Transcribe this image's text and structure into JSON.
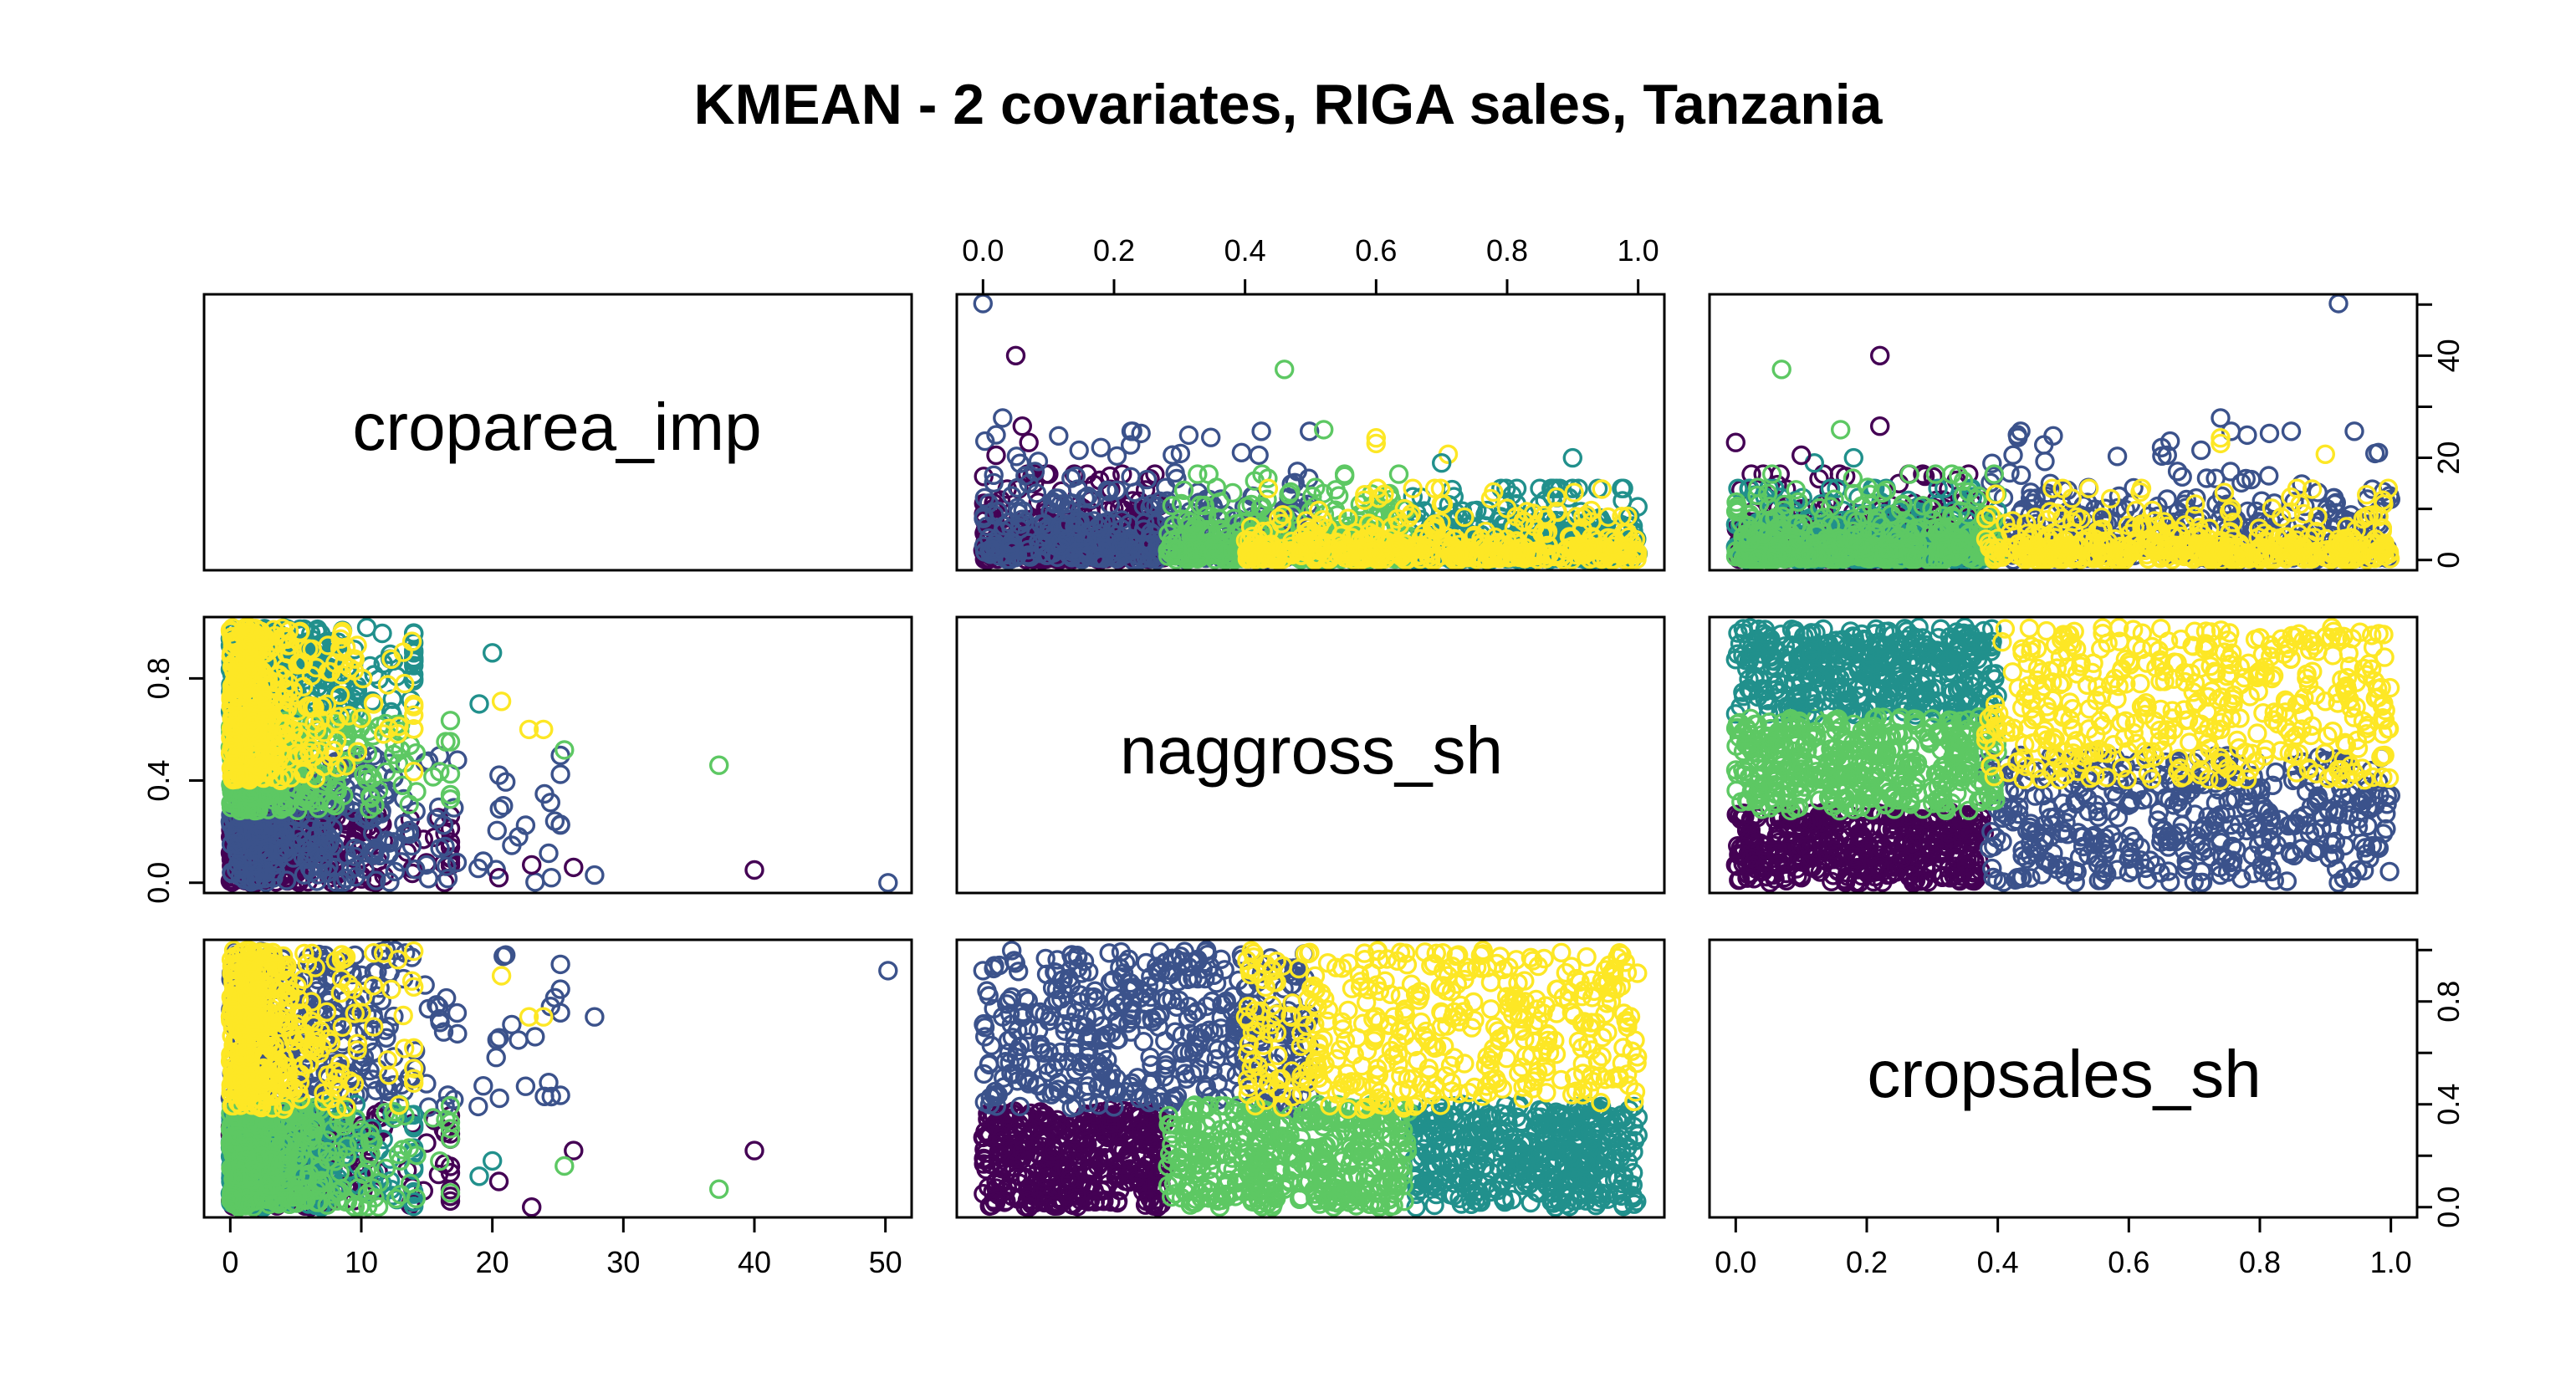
{
  "chart_data": {
    "type": "scatter",
    "subtype": "scatterplot-matrix",
    "title": "KMEAN - 2 covariates, RIGA sales, Tanzania",
    "variables": [
      {
        "name": "croparea_imp",
        "range": [
          0,
          50
        ],
        "ticks": [
          "0",
          "10",
          "20",
          "30",
          "40",
          "50"
        ]
      },
      {
        "name": "naggross_sh",
        "range": [
          0,
          1
        ],
        "ticks": [
          "0.0",
          "0.2",
          "0.4",
          "0.6",
          "0.8",
          "1.0"
        ],
        "left_ticks": [
          "0.0",
          "0.4",
          "0.8"
        ]
      },
      {
        "name": "cropsales_sh",
        "range": [
          0,
          1
        ],
        "ticks": [
          "0.0",
          "0.2",
          "0.4",
          "0.6",
          "0.8",
          "1.0"
        ],
        "right_ticks": [
          "0.0",
          "0.4",
          "0.8"
        ]
      }
    ],
    "croparea_right_ticks": [
      "0",
      "20",
      "40"
    ],
    "clusters": [
      {
        "id": 1,
        "color": "#440154",
        "naggross_sh": [
          0.0,
          0.28
        ],
        "cropsales_sh": [
          0.0,
          0.38
        ],
        "croparea_typical_max": 12
      },
      {
        "id": 2,
        "color": "#3B528B",
        "naggross_sh": [
          0.0,
          0.5
        ],
        "cropsales_sh": [
          0.38,
          1.0
        ],
        "croparea_typical_max": 18
      },
      {
        "id": 3,
        "color": "#21908C",
        "naggross_sh": [
          0.65,
          1.0
        ],
        "cropsales_sh": [
          0.0,
          0.4
        ],
        "croparea_typical_max": 10
      },
      {
        "id": 4,
        "color": "#5DC863",
        "naggross_sh": [
          0.28,
          0.65
        ],
        "cropsales_sh": [
          0.0,
          0.4
        ],
        "croparea_typical_max": 12
      },
      {
        "id": 5,
        "color": "#FDE725",
        "naggross_sh": [
          0.4,
          1.0
        ],
        "cropsales_sh": [
          0.38,
          1.0
        ],
        "croparea_typical_max": 10
      }
    ],
    "outliers": [
      {
        "cluster": 2,
        "croparea_imp": 50.2,
        "naggross_sh": 0.0,
        "cropsales_sh": 0.92
      },
      {
        "cluster": 1,
        "croparea_imp": 40.0,
        "naggross_sh": 0.05,
        "cropsales_sh": 0.22
      },
      {
        "cluster": 4,
        "croparea_imp": 37.3,
        "naggross_sh": 0.46,
        "cropsales_sh": 0.07
      },
      {
        "cluster": 2,
        "croparea_imp": 27.8,
        "naggross_sh": 0.03,
        "cropsales_sh": 0.74
      },
      {
        "cluster": 1,
        "croparea_imp": 26.2,
        "naggross_sh": 0.06,
        "cropsales_sh": 0.22
      },
      {
        "cluster": 4,
        "croparea_imp": 25.5,
        "naggross_sh": 0.52,
        "cropsales_sh": 0.16
      },
      {
        "cluster": 2,
        "croparea_imp": 24.5,
        "naggross_sh": 0.02,
        "cropsales_sh": 0.43
      },
      {
        "cluster": 5,
        "croparea_imp": 23.9,
        "naggross_sh": 0.6,
        "cropsales_sh": 0.74
      },
      {
        "cluster": 5,
        "croparea_imp": 22.8,
        "naggross_sh": 0.6,
        "cropsales_sh": 0.74
      },
      {
        "cluster": 3,
        "croparea_imp": 20.0,
        "naggross_sh": 0.9,
        "cropsales_sh": 0.18
      },
      {
        "cluster": 5,
        "croparea_imp": 20.7,
        "naggross_sh": 0.71,
        "cropsales_sh": 0.9
      },
      {
        "cluster": 2,
        "croparea_imp": 22.0,
        "naggross_sh": 0.18,
        "cropsales_sh": 0.65
      },
      {
        "cluster": 1,
        "croparea_imp": 23.0,
        "naggross_sh": 0.07,
        "cropsales_sh": 0.0
      },
      {
        "cluster": 3,
        "croparea_imp": 19.0,
        "naggross_sh": 0.7,
        "cropsales_sh": 0.12
      },
      {
        "cluster": 1,
        "croparea_imp": 20.5,
        "naggross_sh": 0.02,
        "cropsales_sh": 0.1
      }
    ]
  }
}
